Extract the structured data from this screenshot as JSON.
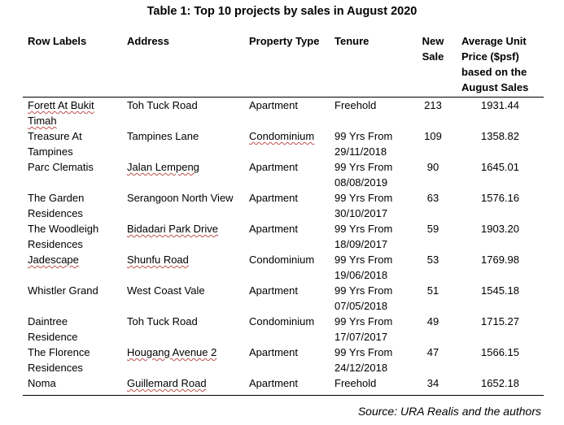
{
  "title": "Table 1: Top 10 projects by sales in August 2020",
  "headers": {
    "row_labels": "Row Labels",
    "address": "Address",
    "property_type": "Property Type",
    "tenure": "Tenure",
    "new_sale": "New Sale",
    "avg_price": "Average Unit Price ($psf) based on the August Sales"
  },
  "rows": [
    {
      "name": "Forett At Bukit Timah",
      "address": "Toh Tuck Road",
      "type": "Apartment",
      "tenure": "Freehold",
      "new_sale": "213",
      "price": "1931.44"
    },
    {
      "name": "Treasure At Tampines",
      "address": "Tampines Lane",
      "type": "Condominium",
      "tenure": "99 Yrs From 29/11/2018",
      "new_sale": "109",
      "price": "1358.82"
    },
    {
      "name": "Parc Clematis",
      "address": "Jalan Lempeng",
      "type": "Apartment",
      "tenure": "99 Yrs From 08/08/2019",
      "new_sale": "90",
      "price": "1645.01"
    },
    {
      "name": "The Garden Residences",
      "address": "Serangoon North View",
      "type": "Apartment",
      "tenure": "99 Yrs From 30/10/2017",
      "new_sale": "63",
      "price": "1576.16"
    },
    {
      "name": "The Woodleigh Residences",
      "address": "Bidadari Park Drive",
      "type": "Apartment",
      "tenure": "99 Yrs From 18/09/2017",
      "new_sale": "59",
      "price": "1903.20"
    },
    {
      "name": "Jadescape",
      "address": "Shunfu Road",
      "type": "Condominium",
      "tenure": "99 Yrs From 19/06/2018",
      "new_sale": "53",
      "price": "1769.98"
    },
    {
      "name": "Whistler Grand",
      "address": "West Coast Vale",
      "type": "Apartment",
      "tenure": "99 Yrs From 07/05/2018",
      "new_sale": "51",
      "price": "1545.18"
    },
    {
      "name": "Daintree Residence",
      "address": "Toh Tuck Road",
      "type": "Condominium",
      "tenure": "99 Yrs From 17/07/2017",
      "new_sale": "49",
      "price": "1715.27"
    },
    {
      "name": "The Florence Residences",
      "address": "Hougang Avenue 2",
      "type": "Apartment",
      "tenure": "99 Yrs From 24/12/2018",
      "new_sale": "47",
      "price": "1566.15"
    },
    {
      "name": "Noma",
      "address": "Guillemard Road",
      "type": "Apartment",
      "tenure": "Freehold",
      "new_sale": "34",
      "price": "1652.18"
    }
  ],
  "source": "Source: URA Realis and the authors"
}
